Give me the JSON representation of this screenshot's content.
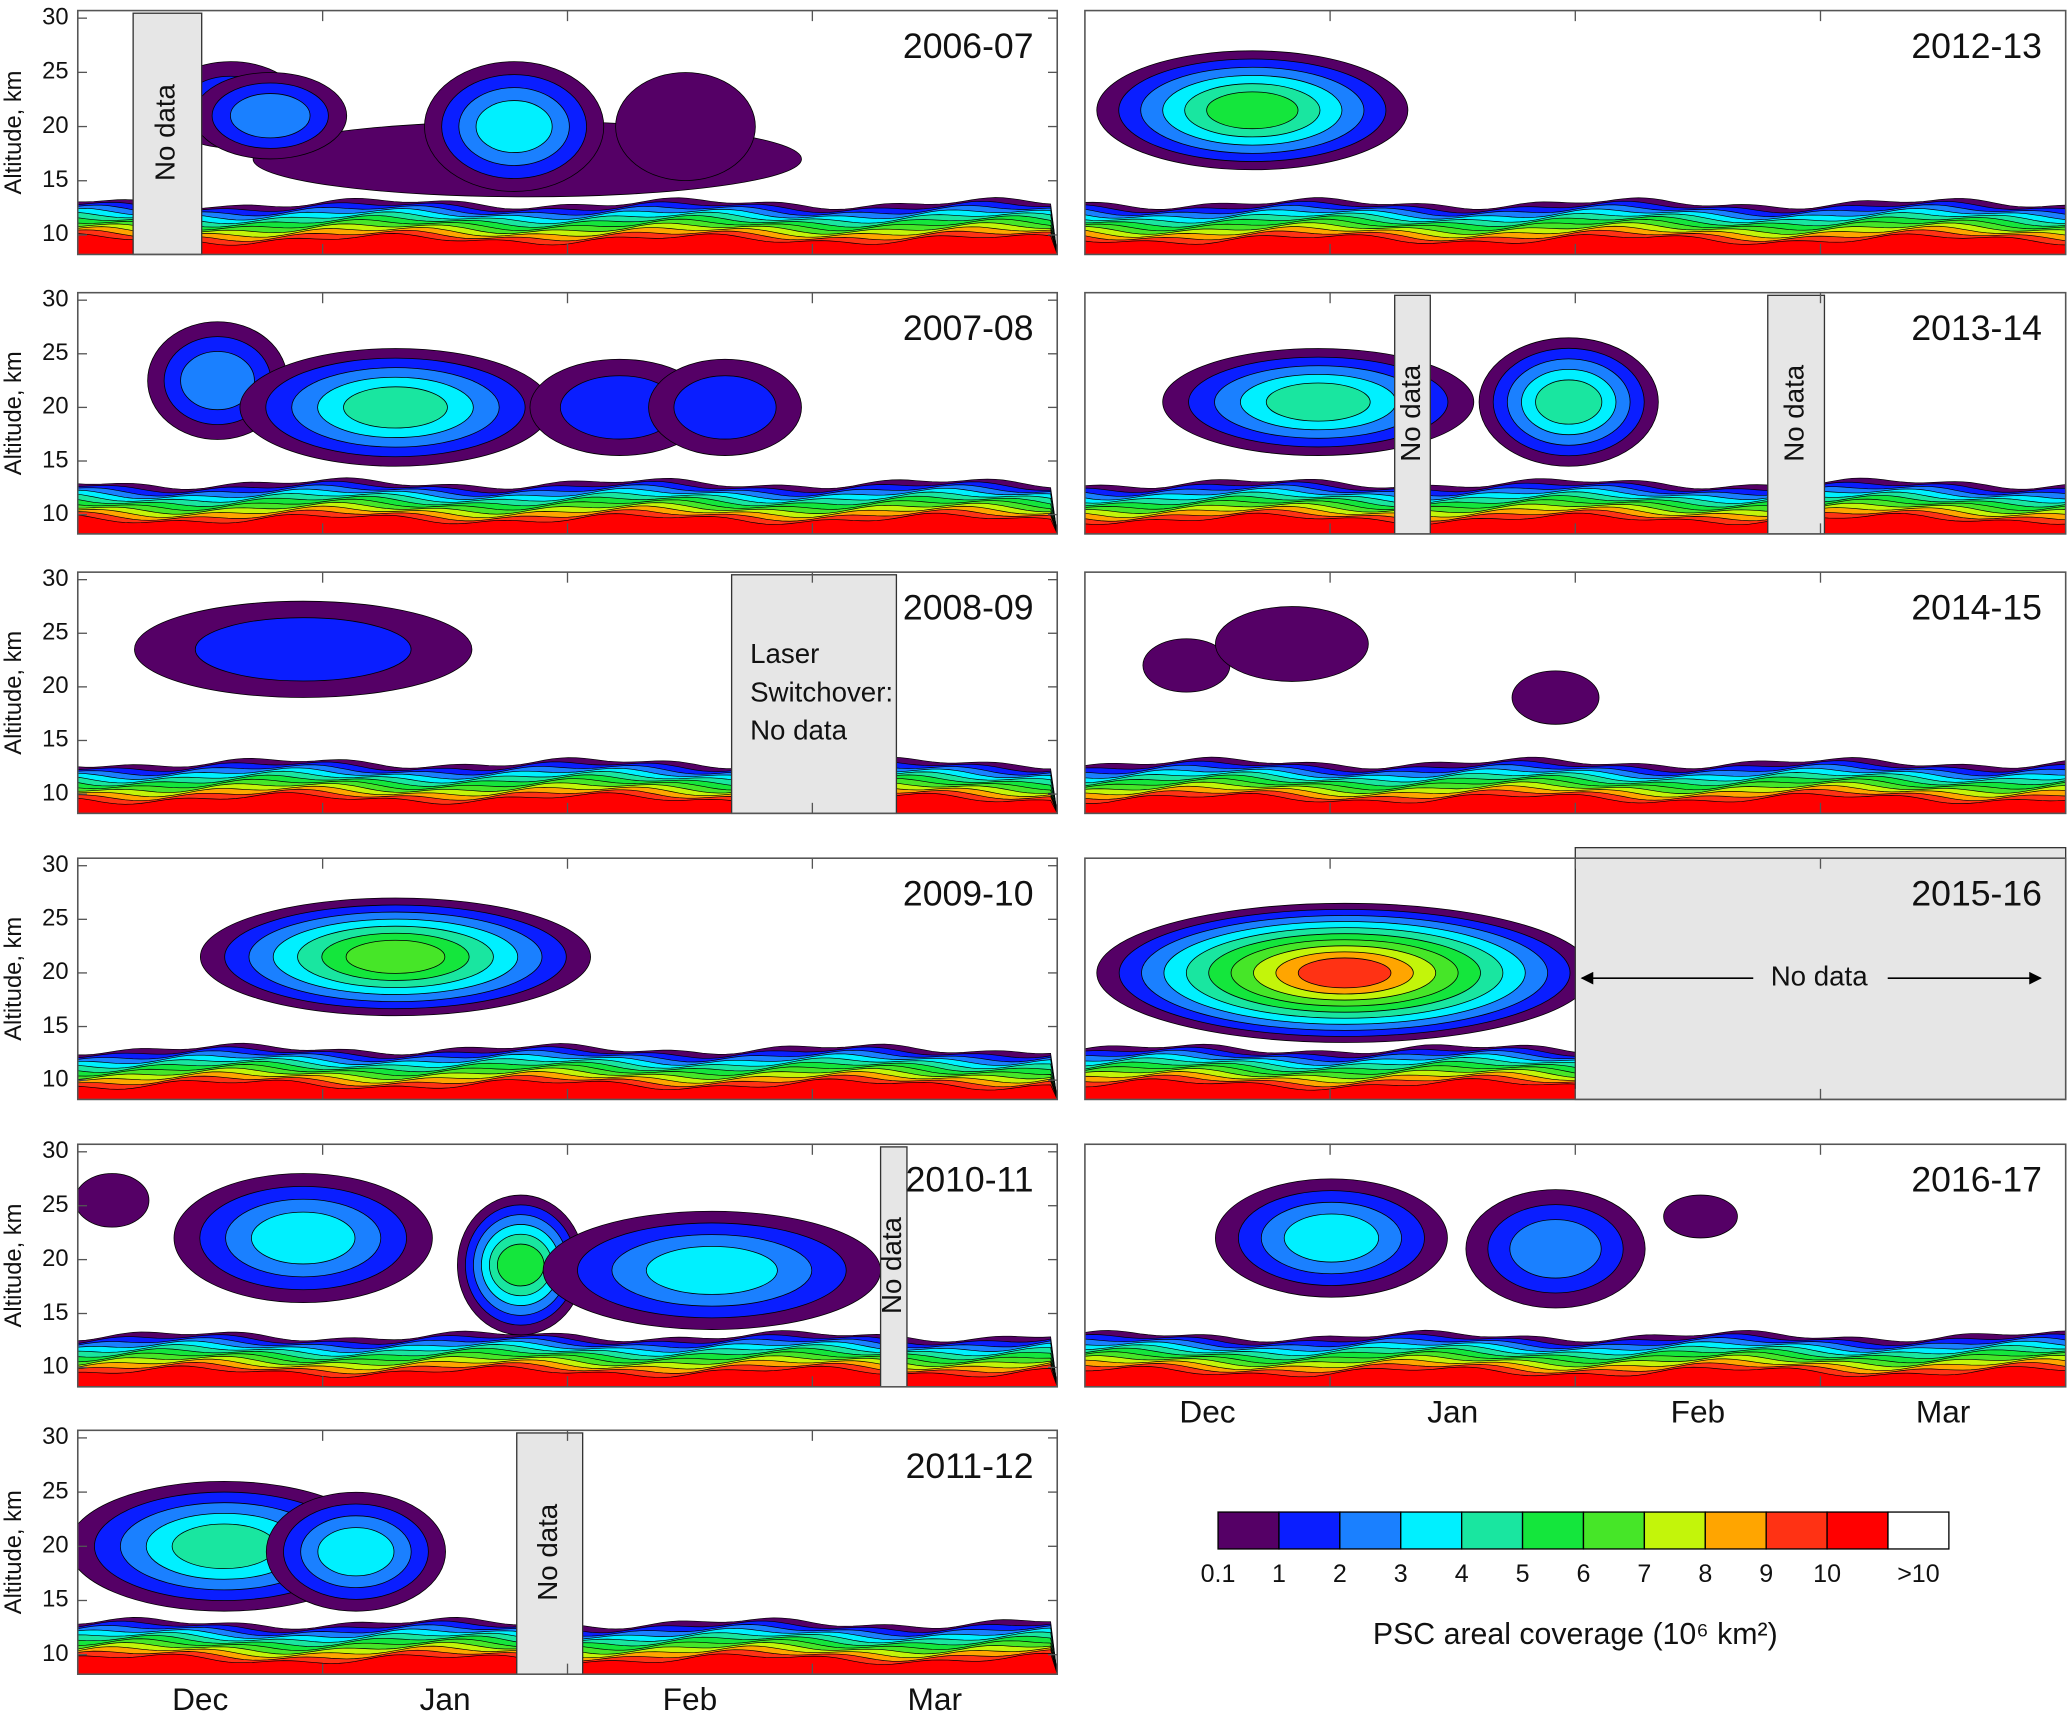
{
  "chart_data": [
    {
      "type": "contour",
      "title": "2006-07",
      "y_label": "Altitude, km",
      "ylim": [
        8.2,
        30.7
      ],
      "yticks": [
        10,
        15,
        20,
        25,
        30
      ],
      "annotations": [
        "No data"
      ]
    },
    {
      "type": "contour",
      "title": "2007-08",
      "y_label": "Altitude, km",
      "ylim": [
        8.2,
        30.7
      ],
      "yticks": [
        10,
        15,
        20,
        25,
        30
      ]
    },
    {
      "type": "contour",
      "title": "2008-09",
      "y_label": "Altitude, km",
      "ylim": [
        8.2,
        30.7
      ],
      "yticks": [
        10,
        15,
        20,
        25,
        30
      ],
      "annotations": [
        [
          "Laser",
          "Switchover:",
          "No data"
        ]
      ]
    },
    {
      "type": "contour",
      "title": "2009-10",
      "y_label": "Altitude, km",
      "ylim": [
        8.2,
        30.7
      ],
      "yticks": [
        10,
        15,
        20,
        25,
        30
      ]
    },
    {
      "type": "contour",
      "title": "2010-11",
      "y_label": "Altitude, km",
      "ylim": [
        8.2,
        30.7
      ],
      "yticks": [
        10,
        15,
        20,
        25,
        30
      ],
      "annotations": [
        "No data"
      ]
    },
    {
      "type": "contour",
      "title": "2011-12",
      "y_label": "Altitude, km",
      "ylim": [
        8.2,
        30.7
      ],
      "yticks": [
        10,
        15,
        20,
        25,
        30
      ],
      "annotations": [
        "No data"
      ],
      "categories": [
        "Dec",
        "Jan",
        "Feb",
        "Mar"
      ]
    },
    {
      "type": "contour",
      "title": "2012-13"
    },
    {
      "type": "contour",
      "title": "2013-14",
      "annotations": [
        "No data",
        "No data"
      ]
    },
    {
      "type": "contour",
      "title": "2014-15"
    },
    {
      "type": "contour",
      "title": "2015-16",
      "annotations": [
        "No data"
      ]
    },
    {
      "type": "contour",
      "title": "2016-17",
      "categories": [
        "Dec",
        "Jan",
        "Feb",
        "Mar"
      ]
    },
    {
      "type": "colorbar",
      "title": "PSC areal coverage (10⁶ km²)",
      "ticks": [
        0.1,
        1,
        2,
        3,
        4,
        5,
        6,
        7,
        8,
        9,
        10
      ],
      "overflow_label": ">10",
      "colors": [
        "#550066",
        "#0a1eff",
        "#1a80ff",
        "#00f0ff",
        "#19e6a0",
        "#14e63c",
        "#46e628",
        "#c3f50a",
        "#ffa500",
        "#ff3214",
        "#ff0000",
        "#ffffff"
      ]
    }
  ]
}
